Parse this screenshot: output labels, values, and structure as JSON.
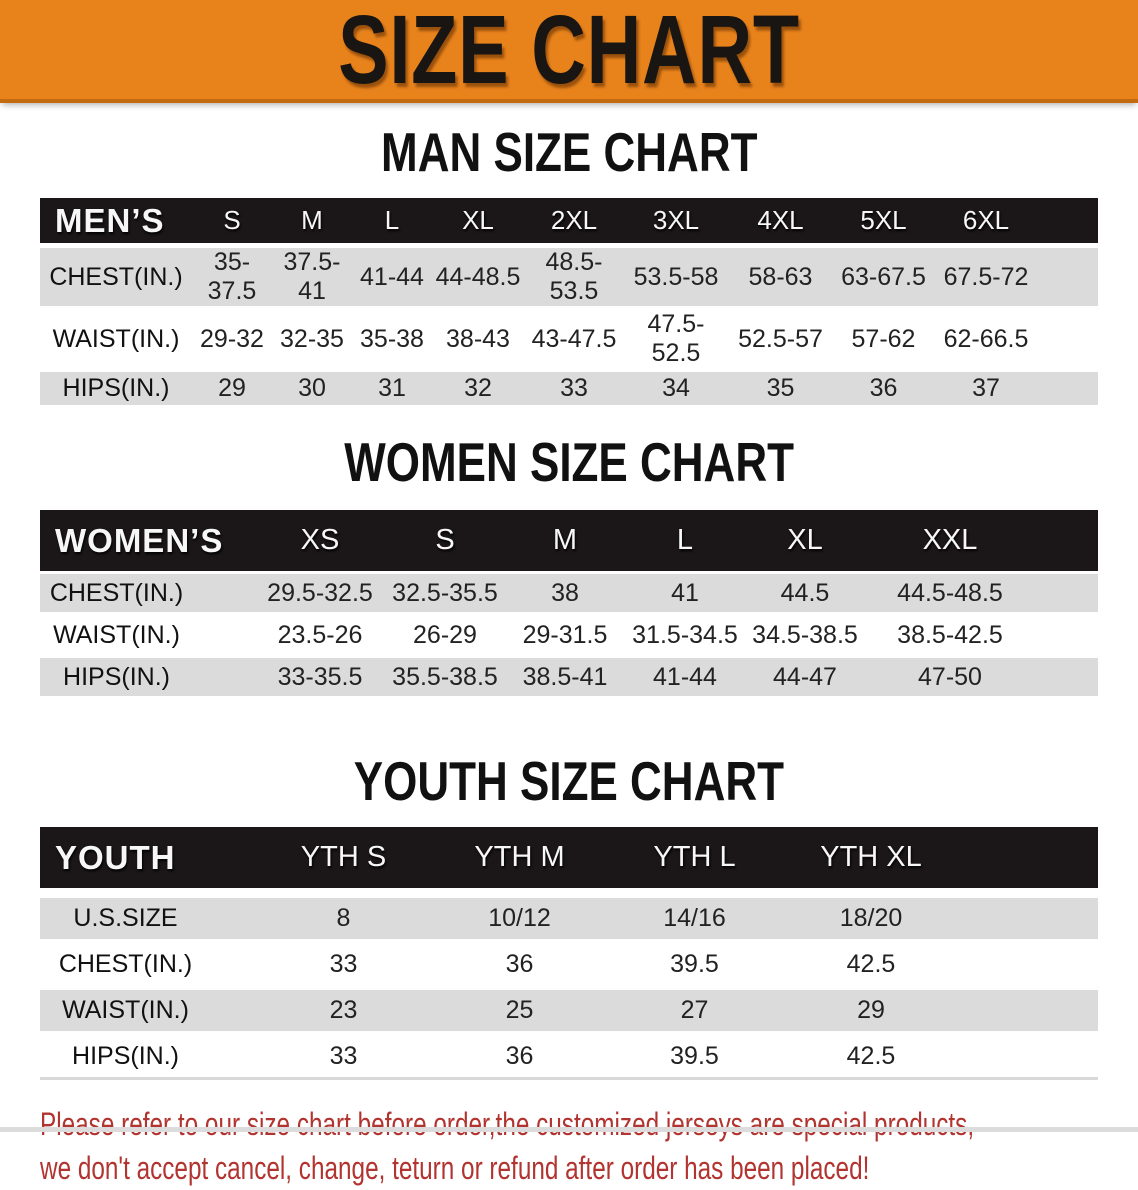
{
  "banner": {
    "title": "SIZE CHART"
  },
  "colors": {
    "banner_bg": "#E8831C",
    "banner_border": "#C26A10",
    "header_bar": "#1B1617",
    "row_gray": "#DBDBDB",
    "disclaimer_red": "#B23430"
  },
  "sections": [
    {
      "title": "MAN SIZE CHART"
    },
    {
      "title": "WOMEN SIZE CHART"
    },
    {
      "title": "YOUTH SIZE CHART"
    }
  ],
  "chart_data": [
    {
      "type": "table",
      "title": "MAN SIZE CHART",
      "header": [
        "MEN’S",
        "S",
        "M",
        "L",
        "XL",
        "2XL",
        "3XL",
        "4XL",
        "5XL",
        "6XL"
      ],
      "rows": [
        [
          "CHEST(IN.)",
          "35-37.5",
          "37.5-41",
          "41-44",
          "44-48.5",
          "48.5-53.5",
          "53.5-58",
          "58-63",
          "63-67.5",
          "67.5-72"
        ],
        [
          "WAIST(IN.)",
          "29-32",
          "32-35",
          "35-38",
          "38-43",
          "43-47.5",
          "47.5-52.5",
          "52.5-57",
          "57-62",
          "62-66.5"
        ],
        [
          "HIPS(IN.)",
          "29",
          "30",
          "31",
          "32",
          "33",
          "34",
          "35",
          "36",
          "37"
        ]
      ]
    },
    {
      "type": "table",
      "title": "WOMEN SIZE CHART",
      "header": [
        "WOMEN’S",
        "XS",
        "S",
        "M",
        "L",
        "XL",
        "XXL"
      ],
      "rows": [
        [
          "CHEST(IN.)",
          "29.5-32.5",
          "32.5-35.5",
          "38",
          "41",
          "44.5",
          "44.5-48.5"
        ],
        [
          "WAIST(IN.)",
          "23.5-26",
          "26-29",
          "29-31.5",
          "31.5-34.5",
          "34.5-38.5",
          "38.5-42.5"
        ],
        [
          "HIPS(IN.)",
          "33-35.5",
          "35.5-38.5",
          "38.5-41",
          "41-44",
          "44-47",
          "47-50"
        ]
      ]
    },
    {
      "type": "table",
      "title": "YOUTH SIZE CHART",
      "header": [
        "YOUTH",
        "YTH S",
        "YTH M",
        "YTH L",
        "YTH XL"
      ],
      "rows": [
        [
          "U.S.SIZE",
          "8",
          "10/12",
          "14/16",
          "18/20"
        ],
        [
          "CHEST(IN.)",
          "33",
          "36",
          "39.5",
          "42.5"
        ],
        [
          "WAIST(IN.)",
          "23",
          "25",
          "27",
          "29"
        ],
        [
          "HIPS(IN.)",
          "33",
          "36",
          "39.5",
          "42.5"
        ]
      ]
    }
  ],
  "disclaimer": {
    "line1": "Please refer to our size chart before order,the customized jerseys are special products,",
    "line2": "we don't accept cancel, change, teturn or refund after order has been placed!"
  }
}
